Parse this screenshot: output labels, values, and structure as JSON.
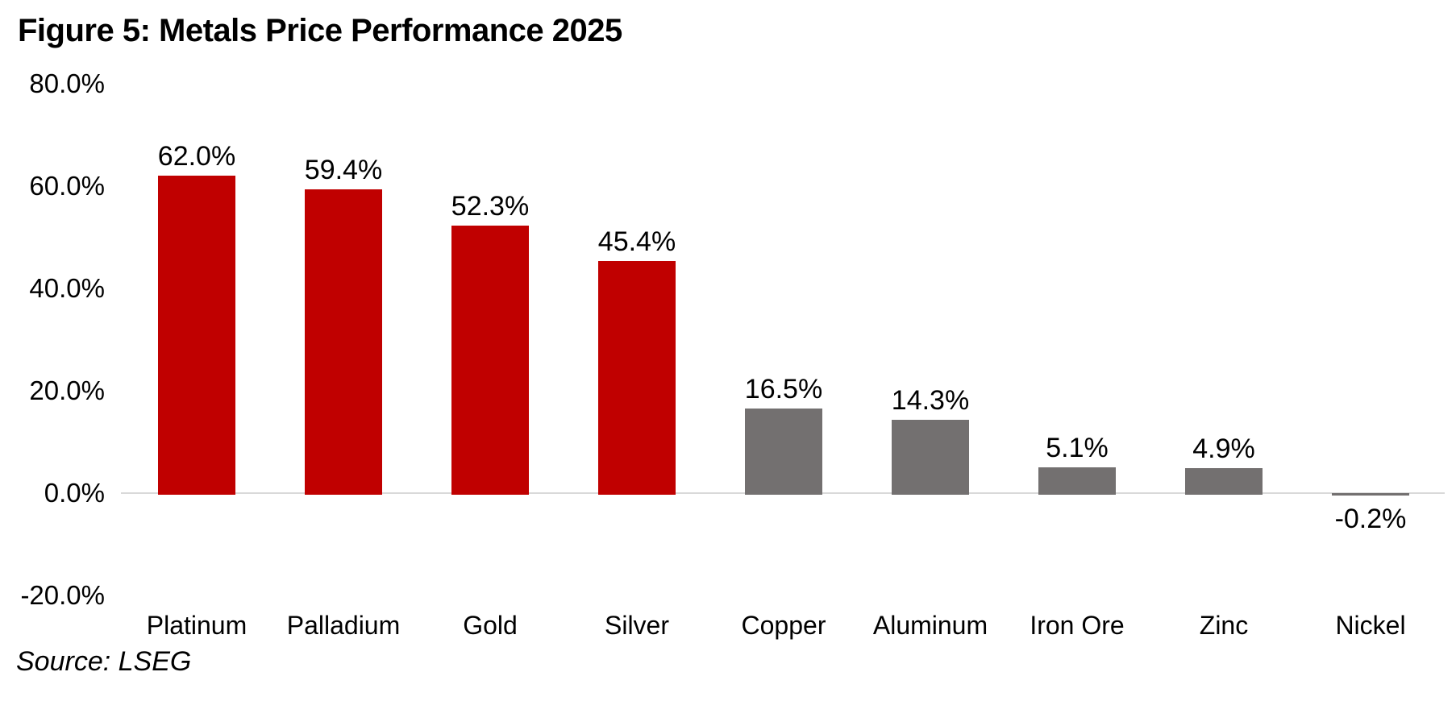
{
  "figure": {
    "title": "Figure 5: Metals Price Performance 2025",
    "source": "Source: LSEG"
  },
  "chart_data": {
    "type": "bar",
    "title": "Figure 5: Metals Price Performance 2025",
    "categories": [
      "Platinum",
      "Palladium",
      "Gold",
      "Silver",
      "Copper",
      "Aluminum",
      "Iron Ore",
      "Zinc",
      "Nickel"
    ],
    "values": [
      62.0,
      59.4,
      52.3,
      45.4,
      16.5,
      14.3,
      5.1,
      4.9,
      -0.2
    ],
    "value_labels": [
      "62.0%",
      "59.4%",
      "52.3%",
      "45.4%",
      "16.5%",
      "14.3%",
      "5.1%",
      "4.9%",
      "-0.2%"
    ],
    "bar_colors": [
      "#C00000",
      "#C00000",
      "#C00000",
      "#C00000",
      "#737070",
      "#737070",
      "#737070",
      "#737070",
      "#737070"
    ],
    "xlabel": "",
    "ylabel": "",
    "ylim": [
      -20,
      80
    ],
    "yticks": [
      80,
      60,
      40,
      20,
      0,
      -20
    ],
    "ytick_labels": [
      "80.0%",
      "60.0%",
      "40.0%",
      "20.0%",
      "0.0%",
      "-20.0%"
    ],
    "grid": false,
    "legend": "none",
    "colors": {
      "precious_metals_bar": "#C00000",
      "base_metals_bar": "#737070",
      "axis_line": "#D9D9D9",
      "text": "#000000",
      "background": "#FFFFFF"
    },
    "source": "Source: LSEG"
  }
}
